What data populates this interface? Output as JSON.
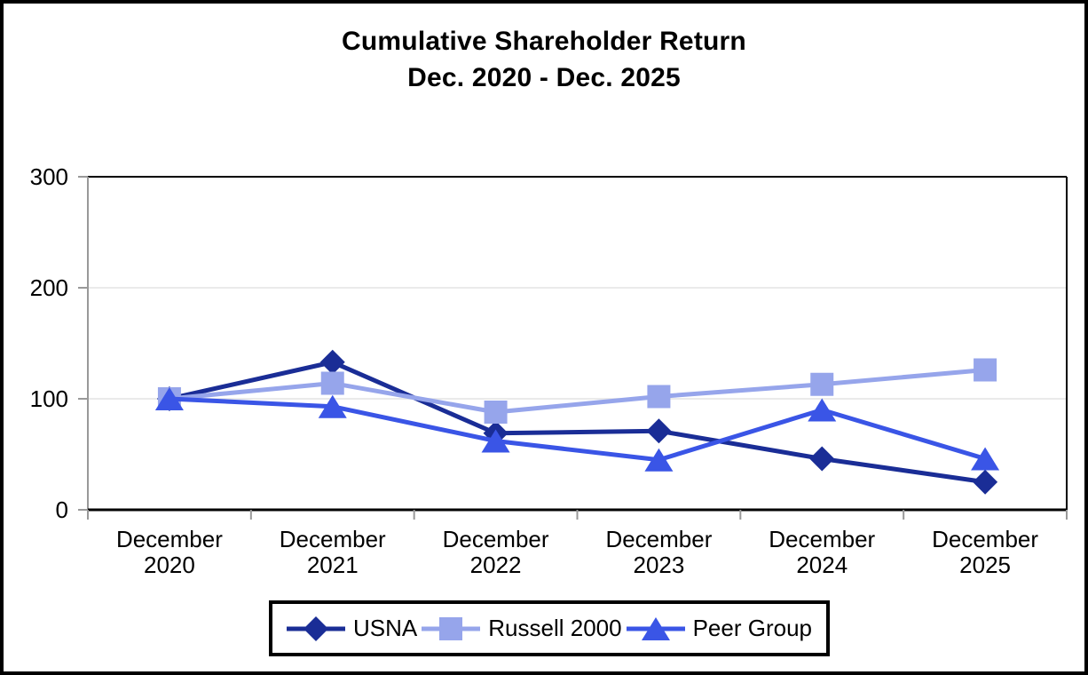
{
  "title": {
    "line1": "Cumulative Shareholder Return",
    "line2": "Dec. 2020 - Dec. 2025"
  },
  "chart_data": {
    "type": "line",
    "title": "Cumulative Shareholder Return Dec. 2020 - Dec. 2025",
    "xlabel": "",
    "ylabel": "",
    "categories": [
      "December 2020",
      "December 2021",
      "December 2022",
      "December 2023",
      "December 2024",
      "December 2025"
    ],
    "series": [
      {
        "name": "USNA",
        "marker": "diamond",
        "color": "#1A2D96",
        "values": [
          100,
          133,
          69,
          71,
          46,
          25
        ]
      },
      {
        "name": "Russell 2000",
        "marker": "square",
        "color": "#96A5EB",
        "values": [
          100,
          114,
          88,
          102,
          113,
          126
        ]
      },
      {
        "name": "Peer Group",
        "marker": "triangle",
        "color": "#3A55E6",
        "values": [
          100,
          93,
          62,
          45,
          90,
          46
        ]
      }
    ],
    "ylim": [
      0,
      300
    ],
    "yticks": [
      0,
      100,
      200,
      300
    ],
    "grid": "light horizontal gridlines at 100 and 200",
    "legend_position": "bottom"
  },
  "style_colors": {
    "background": "#FFFFFF",
    "outer_border": "#000000",
    "plot_border": "#000000",
    "value_axis": "#999999",
    "tick": "#999999",
    "gridline": "#EAEAEA",
    "text": "#000000"
  }
}
